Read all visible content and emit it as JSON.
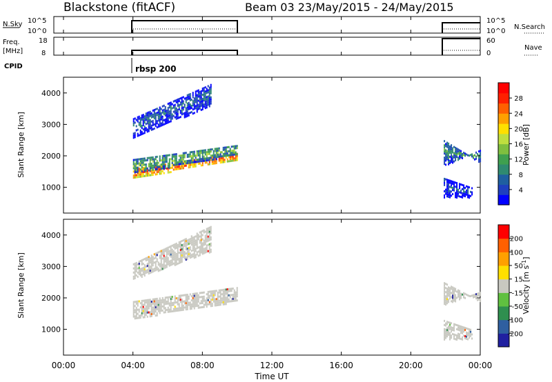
{
  "header": {
    "station": "Blackstone (fitACF)",
    "beam_date": "Beam 03  23/May/2015 - 24/May/2015"
  },
  "panels": {
    "nsky": {
      "label": "N.Sky",
      "ticks": [
        "10^5",
        "10^0"
      ],
      "right_ticks": [
        "10^5",
        "10^0"
      ],
      "right_label": "N.Search"
    },
    "freq": {
      "label": "Freq.",
      "unit": "[MHz]",
      "ticks": [
        "18",
        "8"
      ],
      "right_ticks": [
        "60",
        "0"
      ],
      "right_label": "Nave"
    },
    "cpid": {
      "label": "CPID",
      "value": "rbsp 200"
    }
  },
  "colors": {
    "power_scale": [
      "#0000ff",
      "#1f3fbf",
      "#1f5fa0",
      "#2f8a70",
      "#3fa04f",
      "#7fbf3f",
      "#bfdf3f",
      "#ffdf00",
      "#ffa000",
      "#ff6000",
      "#ff2000",
      "#ff0000"
    ],
    "velocity_scale": [
      "#2020a0",
      "#2f5fa0",
      "#2f8f4f",
      "#60c040",
      "#c8c8c0",
      "#ffdf00",
      "#ffa000",
      "#ff6000",
      "#ff0000"
    ]
  },
  "chart_data": [
    {
      "type": "heatmap",
      "name": "power",
      "ylabel": "Slant Range [km]",
      "yticks": [
        "1000",
        "2000",
        "3000",
        "4000"
      ],
      "ylim": [
        180,
        4500
      ],
      "xlim": [
        0,
        24
      ],
      "colorbar": {
        "label": "Power [dB]",
        "ticks": [
          "28",
          "24",
          "20",
          "16",
          "12",
          "8",
          "4"
        ],
        "range": [
          0,
          30
        ]
      },
      "bands": [
        {
          "x": [
            4.0,
            10.0
          ],
          "y0": [
            1300,
            1900
          ],
          "y1": [
            1600,
            2100
          ],
          "value": 24
        },
        {
          "x": [
            4.0,
            10.0
          ],
          "y0": [
            1450,
            2050
          ],
          "y1": [
            1900,
            2350
          ],
          "value": 12
        },
        {
          "x": [
            4.0,
            8.5
          ],
          "y0": [
            2600,
            3600
          ],
          "y1": [
            3200,
            4300
          ],
          "value": 6
        },
        {
          "x": [
            21.9,
            24.0
          ],
          "y0": [
            1700,
            2200
          ],
          "y1": [
            2500,
            1800
          ],
          "value": 10
        },
        {
          "x": [
            21.9,
            23.5
          ],
          "y0": [
            700,
            700
          ],
          "y1": [
            1300,
            1000
          ],
          "value": 5
        }
      ]
    },
    {
      "type": "heatmap",
      "name": "velocity",
      "ylabel": "Slant Range [km]",
      "yticks": [
        "1000",
        "2000",
        "3000",
        "4000"
      ],
      "ylim": [
        180,
        4500
      ],
      "xlim": [
        0,
        24
      ],
      "xlabel": "Time UT",
      "xticks": [
        "00:00",
        "04:00",
        "08:00",
        "12:00",
        "16:00",
        "20:00",
        "00:00"
      ],
      "colorbar": {
        "label": "Velocity [m s^-1]",
        "ticks": [
          "200",
          "100",
          "50",
          "15",
          "-15",
          "-50",
          "-100",
          "-200"
        ],
        "range": [
          -250,
          250
        ]
      },
      "bands": [
        {
          "x": [
            4.0,
            10.0
          ],
          "y0": [
            1350,
            1900
          ],
          "y1": [
            1900,
            2350
          ],
          "value": 0
        },
        {
          "x": [
            4.0,
            8.5
          ],
          "y0": [
            2600,
            3500
          ],
          "y1": [
            3100,
            4300
          ],
          "value": 0
        },
        {
          "x": [
            21.9,
            24.0
          ],
          "y0": [
            1800,
            2200
          ],
          "y1": [
            2500,
            1900
          ],
          "value": 0
        },
        {
          "x": [
            21.9,
            23.5
          ],
          "y0": [
            700,
            700
          ],
          "y1": [
            1300,
            1000
          ],
          "value": 0
        }
      ]
    }
  ]
}
